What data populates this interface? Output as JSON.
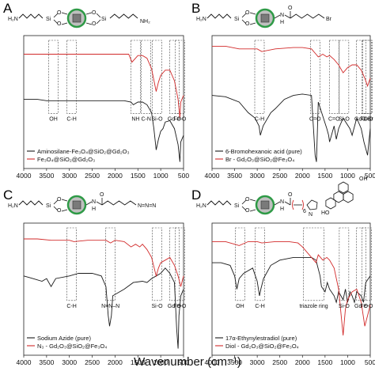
{
  "figure": {
    "xlabel": "Wavenumber (cm⁻¹)",
    "colors": {
      "black_series": "#1a1a1a",
      "red_series": "#d22a2a",
      "core": "#7a7a7a",
      "shell": "#2e9a46"
    }
  },
  "chart_data": [
    {
      "panel": "A",
      "type": "line",
      "xlim": [
        4000,
        500
      ],
      "xticks": [
        4000,
        3500,
        3000,
        2500,
        2000,
        1500,
        1000,
        500
      ],
      "structure": {
        "left": "H₂N",
        "si_left": "Si",
        "si_right": "Si",
        "o": "O",
        "right": "NH₂"
      },
      "series": [
        {
          "name": "Aminosilane-Fe₃O₄@SiO₂@Gd₂O₃",
          "color": "#1a1a1a",
          "x": [
            4000,
            3700,
            3500,
            3300,
            3000,
            2900,
            2600,
            2200,
            2000,
            1800,
            1650,
            1600,
            1500,
            1400,
            1300,
            1200,
            1150,
            1100,
            1050,
            1000,
            950,
            900,
            800,
            700,
            620,
            580,
            560,
            500
          ],
          "y": [
            0.52,
            0.52,
            0.51,
            0.51,
            0.51,
            0.51,
            0.51,
            0.51,
            0.51,
            0.51,
            0.5,
            0.48,
            0.5,
            0.5,
            0.48,
            0.42,
            0.3,
            0.14,
            0.22,
            0.28,
            0.3,
            0.35,
            0.36,
            0.3,
            0.18,
            0.05,
            0.2,
            0.25
          ]
        },
        {
          "name": "Fe₃O₄@SiO₂@Gd₂O₃",
          "color": "#d22a2a",
          "x": [
            4000,
            3700,
            3500,
            3300,
            3000,
            2500,
            2000,
            1700,
            1630,
            1500,
            1400,
            1300,
            1200,
            1100,
            1050,
            1000,
            950,
            900,
            800,
            700,
            620,
            580,
            560,
            500
          ],
          "y": [
            0.86,
            0.86,
            0.86,
            0.86,
            0.86,
            0.86,
            0.86,
            0.86,
            0.8,
            0.85,
            0.85,
            0.83,
            0.75,
            0.58,
            0.65,
            0.7,
            0.72,
            0.74,
            0.74,
            0.66,
            0.52,
            0.38,
            0.5,
            0.55
          ]
        }
      ],
      "annotations": [
        {
          "text": "OH",
          "x": 3350
        },
        {
          "text": "C-H",
          "x": 2950
        },
        {
          "text": "NH",
          "x": 1550
        },
        {
          "text": "C-N",
          "x": 1320
        },
        {
          "text": "Si-O",
          "x": 1080
        },
        {
          "text": "Gd-O",
          "x": 700
        },
        {
          "text": "Fe-O",
          "x": 580
        }
      ]
    },
    {
      "panel": "B",
      "type": "line",
      "xlim": [
        4000,
        500
      ],
      "xticks": [
        4000,
        3500,
        3000,
        2500,
        2000,
        1500,
        1000,
        500
      ],
      "structure": {
        "left": "H₂N",
        "si": "Si",
        "o": "O",
        "n": "N",
        "h": "H",
        "carbonyl_o": "O",
        "right": "Br"
      },
      "series": [
        {
          "name": "6-Bromohexanoic acid (pure)",
          "color": "#1a1a1a",
          "x": [
            4000,
            3700,
            3400,
            3200,
            3050,
            2960,
            2930,
            2870,
            2700,
            2600,
            2400,
            2200,
            2000,
            1800,
            1720,
            1690,
            1650,
            1460,
            1420,
            1400,
            1300,
            1250,
            1200,
            1100,
            950,
            900,
            800,
            700,
            640,
            560,
            500
          ],
          "y": [
            0.55,
            0.54,
            0.5,
            0.42,
            0.38,
            0.32,
            0.25,
            0.32,
            0.42,
            0.45,
            0.52,
            0.55,
            0.56,
            0.55,
            0.1,
            0.05,
            0.5,
            0.3,
            0.25,
            0.2,
            0.32,
            0.22,
            0.3,
            0.38,
            0.3,
            0.25,
            0.38,
            0.3,
            0.2,
            0.1,
            0.3
          ]
        },
        {
          "name": "Br - Gd₂O₃@SiO₂@Fe₃O₄",
          "color": "#d22a2a",
          "x": [
            4000,
            3700,
            3400,
            3000,
            2900,
            2600,
            2200,
            2000,
            1800,
            1700,
            1650,
            1550,
            1460,
            1400,
            1300,
            1200,
            1100,
            1050,
            1000,
            900,
            800,
            700,
            620,
            560,
            500
          ],
          "y": [
            0.92,
            0.92,
            0.9,
            0.9,
            0.88,
            0.9,
            0.91,
            0.91,
            0.9,
            0.86,
            0.84,
            0.86,
            0.84,
            0.85,
            0.82,
            0.78,
            0.72,
            0.74,
            0.76,
            0.78,
            0.78,
            0.74,
            0.68,
            0.62,
            0.68
          ]
        }
      ],
      "annotations": [
        {
          "text": "C-H",
          "x": 2950
        },
        {
          "text": "C=O",
          "x": 1720
        },
        {
          "text": "C=O",
          "x": 1300
        },
        {
          "text": "Si-O",
          "x": 1080
        },
        {
          "text": "C-Br",
          "x": 560
        },
        {
          "text": "Gd-O",
          "x": 700
        },
        {
          "text": "Fe-O",
          "x": 580
        }
      ]
    },
    {
      "panel": "C",
      "type": "line",
      "xlim": [
        4000,
        500
      ],
      "xticks": [
        4000,
        3500,
        3000,
        2500,
        2000,
        1500,
        1000,
        500
      ],
      "structure": {
        "left": "H₂N",
        "si": "Si",
        "o": "O",
        "n": "N",
        "h": "H",
        "carbonyl_o": "O",
        "right": "N=N=N"
      },
      "series": [
        {
          "name": "Sodium Azide (pure)",
          "color": "#1a1a1a",
          "x": [
            4000,
            3800,
            3600,
            3500,
            3400,
            3300,
            3000,
            2800,
            2500,
            2300,
            2200,
            2150,
            2120,
            2080,
            2050,
            1800,
            1600,
            1400,
            1300,
            1200,
            1100,
            1000,
            900,
            800,
            700,
            650,
            620,
            600,
            560,
            500
          ],
          "y": [
            0.6,
            0.58,
            0.56,
            0.58,
            0.52,
            0.58,
            0.6,
            0.62,
            0.62,
            0.6,
            0.52,
            0.3,
            0.22,
            0.3,
            0.45,
            0.5,
            0.55,
            0.56,
            0.55,
            0.58,
            0.6,
            0.62,
            0.66,
            0.62,
            0.55,
            0.2,
            0.05,
            0.3,
            0.45,
            0.5
          ]
        },
        {
          "name": "N₃ - Gd₂O₃@SiO₂@Fe₃O₄",
          "color": "#d22a2a",
          "x": [
            4000,
            3700,
            3400,
            3000,
            2900,
            2600,
            2200,
            2100,
            2000,
            1800,
            1650,
            1550,
            1460,
            1400,
            1300,
            1200,
            1100,
            1050,
            1000,
            900,
            800,
            700,
            620,
            560,
            500
          ],
          "y": [
            0.88,
            0.88,
            0.87,
            0.87,
            0.86,
            0.87,
            0.87,
            0.85,
            0.87,
            0.86,
            0.82,
            0.84,
            0.82,
            0.84,
            0.8,
            0.74,
            0.6,
            0.66,
            0.7,
            0.72,
            0.74,
            0.68,
            0.6,
            0.52,
            0.6
          ]
        }
      ],
      "annotations": [
        {
          "text": "C-H",
          "x": 2950
        },
        {
          "text": "N≡N–N",
          "x": 2100
        },
        {
          "text": "Si-O",
          "x": 1080
        },
        {
          "text": "Gd-O",
          "x": 700
        },
        {
          "text": "Fe-O",
          "x": 580
        }
      ]
    },
    {
      "panel": "D",
      "type": "line",
      "xlim": [
        4000,
        500
      ],
      "xticks": [
        4000,
        3500,
        3000,
        2500,
        2000,
        1500,
        1000,
        500
      ],
      "structure": {
        "left": "H₂N",
        "si": "Si",
        "o": "O",
        "n": "N",
        "h": "H",
        "carbonyl_o": "O",
        "subscript": "6",
        "ho": "HO",
        "oh": "OH",
        "ring_n": "N"
      },
      "series": [
        {
          "name": "17α-Ethynylestradiol (pure)",
          "color": "#1a1a1a",
          "x": [
            4000,
            3800,
            3600,
            3500,
            3450,
            3400,
            3300,
            3100,
            3000,
            2950,
            2920,
            2860,
            2700,
            2500,
            2200,
            2000,
            1800,
            1700,
            1610,
            1580,
            1500,
            1450,
            1400,
            1300,
            1250,
            1200,
            1100,
            1050,
            1000,
            950,
            900,
            850,
            800,
            700,
            650,
            600,
            500
          ],
          "y": [
            0.7,
            0.7,
            0.68,
            0.6,
            0.5,
            0.58,
            0.62,
            0.66,
            0.56,
            0.45,
            0.5,
            0.58,
            0.68,
            0.72,
            0.74,
            0.74,
            0.74,
            0.72,
            0.6,
            0.52,
            0.48,
            0.55,
            0.5,
            0.45,
            0.4,
            0.48,
            0.42,
            0.5,
            0.4,
            0.48,
            0.45,
            0.4,
            0.48,
            0.45,
            0.4,
            0.55,
            0.6
          ]
        },
        {
          "name": "Diol - Gd₂O₃@SiO₂@Fe₃O₄",
          "color": "#d22a2a",
          "x": [
            4000,
            3700,
            3500,
            3400,
            3200,
            3000,
            2900,
            2600,
            2300,
            2100,
            2000,
            1800,
            1700,
            1650,
            1550,
            1460,
            1400,
            1300,
            1200,
            1100,
            1050,
            1000,
            900,
            800,
            700,
            620,
            560,
            500
          ],
          "y": [
            0.86,
            0.86,
            0.84,
            0.83,
            0.86,
            0.86,
            0.85,
            0.86,
            0.86,
            0.85,
            0.82,
            0.74,
            0.7,
            0.76,
            0.72,
            0.74,
            0.72,
            0.66,
            0.5,
            0.15,
            0.35,
            0.42,
            0.48,
            0.5,
            0.4,
            0.22,
            0.3,
            0.38
          ]
        }
      ],
      "annotations": [
        {
          "text": "OH",
          "x": 3380
        },
        {
          "text": "C-H",
          "x": 2940
        },
        {
          "text": "triazole ring",
          "x": 1750
        },
        {
          "text": "Si-O",
          "x": 1080
        },
        {
          "text": "Gd-O",
          "x": 700
        },
        {
          "text": "Fe-O",
          "x": 580
        }
      ]
    }
  ]
}
